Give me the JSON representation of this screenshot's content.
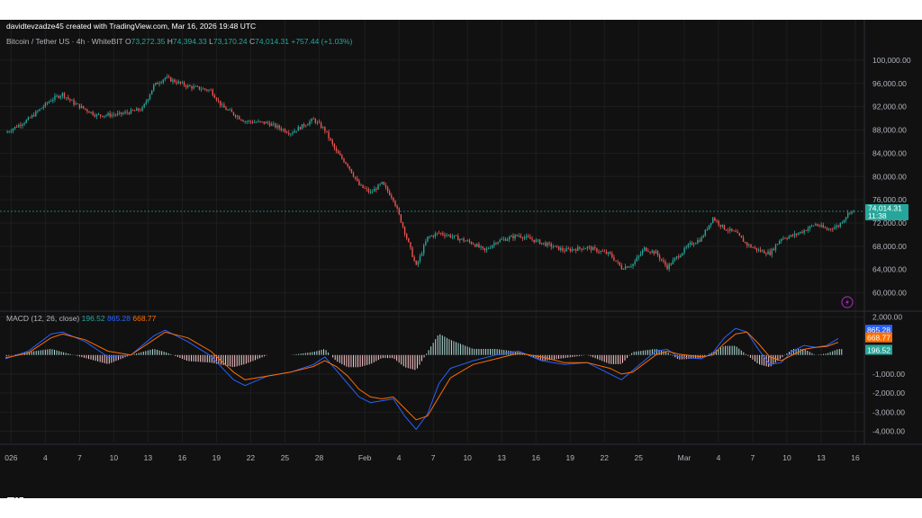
{
  "header": {
    "credit": "davidtevzadze45 created with TradingView.com, Mar 16, 2026 19:48 UTC",
    "symbol": "Bitcoin / Tether US · 4h · WhiteBIT",
    "ohlc": [
      {
        "label": "O",
        "value": "73,272.35"
      },
      {
        "label": "H",
        "value": "74,394.33"
      },
      {
        "label": "L",
        "value": "73,170.24"
      },
      {
        "label": "C",
        "value": "74,014.31"
      }
    ],
    "change": "+757.44 (+1.03%)"
  },
  "footer": {
    "brand": "TradingView"
  },
  "colors": {
    "background": "#111111",
    "up": "#26a69a",
    "down": "#ef5350",
    "macd_line": "#2962ff",
    "signal_line": "#ff6d00",
    "hist_up": "#b2dfdb",
    "hist_down": "#ffcdd2",
    "grid": "#1e1e1e",
    "dashed_price": "#26a69a"
  },
  "chart_data": [
    {
      "type": "candlestick",
      "title": "Bitcoin / Tether US · 4h · WhiteBIT",
      "ylim": [
        57000,
        102000
      ],
      "yticks": [
        "100,000.00",
        "96,000.00",
        "92,000.00",
        "88,000.00",
        "84,000.00",
        "80,000.00",
        "76,000.00",
        "72,000.00",
        "68,000.00",
        "64,000.00",
        "60,000.00"
      ],
      "ytick_values": [
        100000,
        96000,
        92000,
        88000,
        84000,
        80000,
        76000,
        72000,
        68000,
        64000,
        60000
      ],
      "xticks": [
        "026",
        "4",
        "7",
        "10",
        "13",
        "16",
        "19",
        "22",
        "25",
        "28",
        "Feb",
        "4",
        "7",
        "10",
        "13",
        "16",
        "19",
        "22",
        "25",
        "Mar",
        "4",
        "7",
        "10",
        "13",
        "16"
      ],
      "last_price": "74,014.31",
      "countdown": "11:38",
      "close_path": [
        {
          "x": "2026-01-01",
          "y": 87500
        },
        {
          "x": "2026-01-03",
          "y": 89800
        },
        {
          "x": "2026-01-05",
          "y": 93200
        },
        {
          "x": "2026-01-06",
          "y": 94200
        },
        {
          "x": "2026-01-07",
          "y": 92600
        },
        {
          "x": "2026-01-09",
          "y": 90500
        },
        {
          "x": "2026-01-11",
          "y": 90700
        },
        {
          "x": "2026-01-13",
          "y": 91600
        },
        {
          "x": "2026-01-14",
          "y": 95600
        },
        {
          "x": "2026-01-15",
          "y": 97000
        },
        {
          "x": "2026-01-17",
          "y": 95500
        },
        {
          "x": "2026-01-19",
          "y": 94800
        },
        {
          "x": "2026-01-20",
          "y": 92000
        },
        {
          "x": "2026-01-22",
          "y": 89500
        },
        {
          "x": "2026-01-24",
          "y": 89200
        },
        {
          "x": "2026-01-26",
          "y": 87500
        },
        {
          "x": "2026-01-28",
          "y": 89800
        },
        {
          "x": "2026-01-29",
          "y": 88000
        },
        {
          "x": "2026-01-30",
          "y": 84200
        },
        {
          "x": "2026-01-31",
          "y": 82000
        },
        {
          "x": "2026-02-01",
          "y": 78500
        },
        {
          "x": "2026-02-02",
          "y": 77200
        },
        {
          "x": "2026-02-03",
          "y": 78800
        },
        {
          "x": "2026-02-04",
          "y": 76200
        },
        {
          "x": "2026-02-05",
          "y": 70500
        },
        {
          "x": "2026-02-06",
          "y": 64500
        },
        {
          "x": "2026-02-07",
          "y": 69500
        },
        {
          "x": "2026-02-08",
          "y": 70300
        },
        {
          "x": "2026-02-09",
          "y": 69800
        },
        {
          "x": "2026-02-11",
          "y": 68500
        },
        {
          "x": "2026-02-12",
          "y": 67200
        },
        {
          "x": "2026-02-13",
          "y": 68800
        },
        {
          "x": "2026-02-15",
          "y": 69900
        },
        {
          "x": "2026-02-17",
          "y": 68600
        },
        {
          "x": "2026-02-19",
          "y": 67300
        },
        {
          "x": "2026-02-21",
          "y": 67800
        },
        {
          "x": "2026-02-23",
          "y": 66600
        },
        {
          "x": "2026-02-24",
          "y": 64300
        },
        {
          "x": "2026-02-25",
          "y": 64900
        },
        {
          "x": "2026-02-26",
          "y": 67600
        },
        {
          "x": "2026-02-27",
          "y": 66900
        },
        {
          "x": "2026-02-28",
          "y": 64400
        },
        {
          "x": "2026-03-01",
          "y": 66400
        },
        {
          "x": "2026-03-02",
          "y": 68300
        },
        {
          "x": "2026-03-03",
          "y": 69300
        },
        {
          "x": "2026-03-04",
          "y": 72900
        },
        {
          "x": "2026-03-05",
          "y": 71100
        },
        {
          "x": "2026-03-06",
          "y": 70300
        },
        {
          "x": "2026-03-07",
          "y": 68300
        },
        {
          "x": "2026-03-08",
          "y": 67300
        },
        {
          "x": "2026-03-09",
          "y": 66800
        },
        {
          "x": "2026-03-10",
          "y": 69400
        },
        {
          "x": "2026-03-11",
          "y": 69800
        },
        {
          "x": "2026-03-12",
          "y": 70700
        },
        {
          "x": "2026-03-13",
          "y": 71800
        },
        {
          "x": "2026-03-14",
          "y": 70900
        },
        {
          "x": "2026-03-15",
          "y": 71500
        },
        {
          "x": "2026-03-16",
          "y": 74000
        }
      ]
    },
    {
      "type": "line",
      "title": "MACD (12, 26, close)",
      "ylim": [
        -4400,
        2300
      ],
      "yticks": [
        "2,000.00",
        "-1,000.00",
        "-2,000.00",
        "-3,000.00",
        "-4,000.00"
      ],
      "ytick_values": [
        2000,
        -1000,
        -2000,
        -3000,
        -4000
      ],
      "legend": [
        {
          "name": "MACD (12, 26, close)",
          "value": "196.52",
          "color": "#2962ff"
        },
        {
          "value": "865.28",
          "color": "#2962ff"
        },
        {
          "value": "668.77",
          "color": "#ff6d00"
        }
      ],
      "last_values": [
        {
          "value": "865.28",
          "color": "#2962ff"
        },
        {
          "value": "668.77",
          "color": "#ff6d00"
        },
        {
          "value": "196.52",
          "color": "#26a69a"
        }
      ],
      "series": [
        {
          "name": "MACD",
          "color": "#2962ff",
          "points": [
            [
              0,
              -200
            ],
            [
              2,
              200
            ],
            [
              4,
              1100
            ],
            [
              5,
              1200
            ],
            [
              7,
              700
            ],
            [
              9,
              -100
            ],
            [
              11,
              0
            ],
            [
              13,
              1000
            ],
            [
              14,
              1300
            ],
            [
              16,
              700
            ],
            [
              18,
              -50
            ],
            [
              20,
              -1300
            ],
            [
              21,
              -1600
            ],
            [
              23,
              -1100
            ],
            [
              25,
              -900
            ],
            [
              27,
              -500
            ],
            [
              28,
              -100
            ],
            [
              29,
              -800
            ],
            [
              30,
              -1500
            ],
            [
              31,
              -2200
            ],
            [
              32,
              -2500
            ],
            [
              33,
              -2400
            ],
            [
              34,
              -2300
            ],
            [
              35,
              -3200
            ],
            [
              36,
              -3900
            ],
            [
              37,
              -3100
            ],
            [
              38,
              -1500
            ],
            [
              39,
              -700
            ],
            [
              41,
              -300
            ],
            [
              43,
              0
            ],
            [
              45,
              200
            ],
            [
              47,
              -300
            ],
            [
              49,
              -500
            ],
            [
              51,
              -400
            ],
            [
              53,
              -1000
            ],
            [
              54,
              -1300
            ],
            [
              55,
              -800
            ],
            [
              57,
              200
            ],
            [
              58,
              300
            ],
            [
              59,
              -100
            ],
            [
              61,
              -200
            ],
            [
              62,
              100
            ],
            [
              63,
              900
            ],
            [
              64,
              1400
            ],
            [
              65,
              1200
            ],
            [
              66,
              300
            ],
            [
              67,
              -500
            ],
            [
              68,
              -400
            ],
            [
              69,
              200
            ],
            [
              70,
              500
            ],
            [
              71,
              400
            ],
            [
              72,
              500
            ],
            [
              73,
              865
            ]
          ]
        },
        {
          "name": "Signal",
          "color": "#ff6d00",
          "points": [
            [
              0,
              -150
            ],
            [
              2,
              100
            ],
            [
              4,
              900
            ],
            [
              5,
              1100
            ],
            [
              7,
              800
            ],
            [
              9,
              200
            ],
            [
              11,
              0
            ],
            [
              13,
              800
            ],
            [
              14,
              1200
            ],
            [
              16,
              900
            ],
            [
              18,
              200
            ],
            [
              20,
              -900
            ],
            [
              21,
              -1300
            ],
            [
              23,
              -1100
            ],
            [
              25,
              -900
            ],
            [
              27,
              -600
            ],
            [
              28,
              -300
            ],
            [
              29,
              -600
            ],
            [
              30,
              -1100
            ],
            [
              31,
              -1800
            ],
            [
              32,
              -2200
            ],
            [
              33,
              -2300
            ],
            [
              34,
              -2200
            ],
            [
              35,
              -2800
            ],
            [
              36,
              -3400
            ],
            [
              37,
              -3200
            ],
            [
              38,
              -2200
            ],
            [
              39,
              -1200
            ],
            [
              41,
              -500
            ],
            [
              43,
              -200
            ],
            [
              45,
              100
            ],
            [
              47,
              -100
            ],
            [
              49,
              -400
            ],
            [
              51,
              -400
            ],
            [
              53,
              -700
            ],
            [
              54,
              -1000
            ],
            [
              55,
              -900
            ],
            [
              57,
              0
            ],
            [
              58,
              200
            ],
            [
              59,
              50
            ],
            [
              61,
              -100
            ],
            [
              62,
              0
            ],
            [
              63,
              600
            ],
            [
              64,
              1100
            ],
            [
              65,
              1200
            ],
            [
              66,
              600
            ],
            [
              67,
              -100
            ],
            [
              68,
              -300
            ],
            [
              69,
              0
            ],
            [
              70,
              300
            ],
            [
              71,
              400
            ],
            [
              72,
              450
            ],
            [
              73,
              669
            ]
          ]
        }
      ]
    }
  ]
}
